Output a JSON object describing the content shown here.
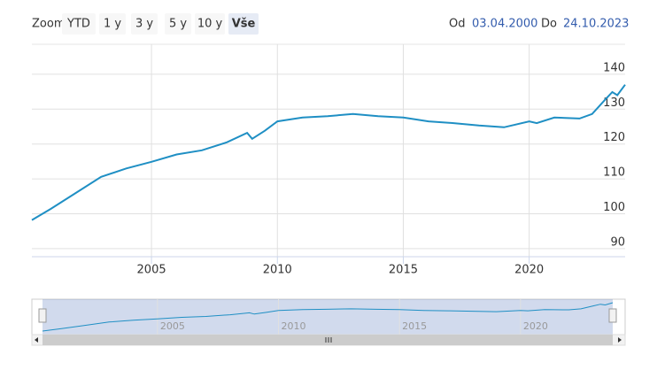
{
  "chart_data": {
    "type": "line",
    "range_selector": {
      "zoom_label": "Zoom",
      "buttons": [
        "YTD",
        "1 y",
        "3 y",
        "5 y",
        "10 y",
        "Vše"
      ],
      "selected": 5,
      "from_label": "Od",
      "from": "03.04.2000",
      "to_label": "Do",
      "to": "24.10.2023"
    },
    "x": [
      2000.25,
      2001,
      2002,
      2003,
      2004,
      2005,
      2006,
      2007,
      2008,
      2008.8,
      2009.0,
      2009.5,
      2010,
      2011,
      2012,
      2013,
      2014,
      2015,
      2016,
      2017,
      2018,
      2019,
      2020,
      2020.3,
      2021,
      2022,
      2022.5,
      2023,
      2023.3,
      2023.5,
      2023.81
    ],
    "series": [
      {
        "color": "#1f8fc4",
        "values": [
          98.2,
          101.4,
          106,
          110.6,
          113,
          114.9,
          117,
          118.2,
          120.5,
          123.2,
          121.5,
          123.8,
          126.5,
          127.6,
          128,
          128.6,
          128,
          127.6,
          126.5,
          126,
          125.3,
          124.8,
          126.5,
          126,
          127.6,
          127.3,
          128.6,
          132.6,
          134.9,
          134,
          137
        ]
      }
    ],
    "xlim": [
      2000.25,
      2023.81
    ],
    "xticks": [
      2005,
      2010,
      2015,
      2020
    ],
    "ylim": [
      87.7,
      148.6
    ],
    "yticks": [
      90,
      100,
      110,
      120,
      130,
      140
    ],
    "grid": true
  }
}
